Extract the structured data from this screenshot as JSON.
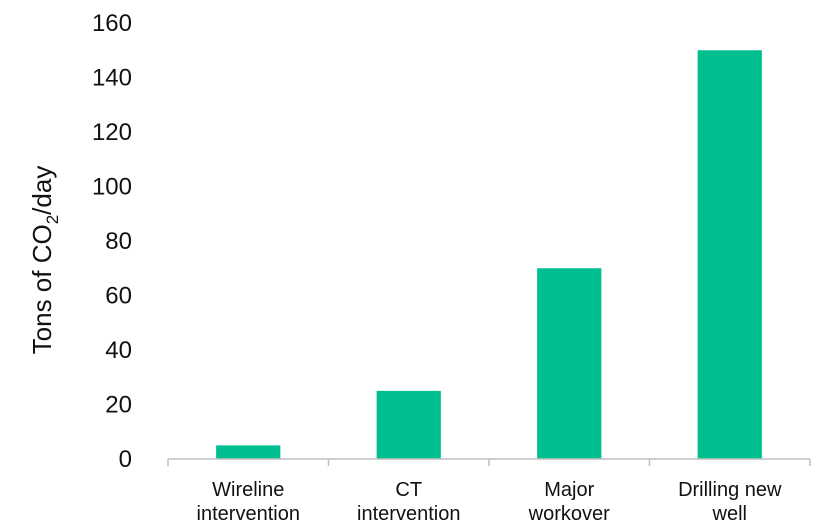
{
  "chart_data": {
    "type": "bar",
    "categories": [
      [
        "Wireline",
        "intervention"
      ],
      [
        "CT",
        "intervention"
      ],
      [
        "Major",
        "workover"
      ],
      [
        "Drilling new",
        "well"
      ]
    ],
    "values": [
      5,
      25,
      70,
      150
    ],
    "ylabel": {
      "prefix": "Tons of CO",
      "subscript": "2",
      "suffix": "/day"
    },
    "ylim": [
      0,
      160
    ],
    "yticks": [
      0,
      20,
      40,
      60,
      80,
      100,
      120,
      140,
      160
    ],
    "grid": false,
    "colors": {
      "bar": "#00BF8F",
      "axis": "#BFBFBF",
      "text": "#111111"
    }
  }
}
